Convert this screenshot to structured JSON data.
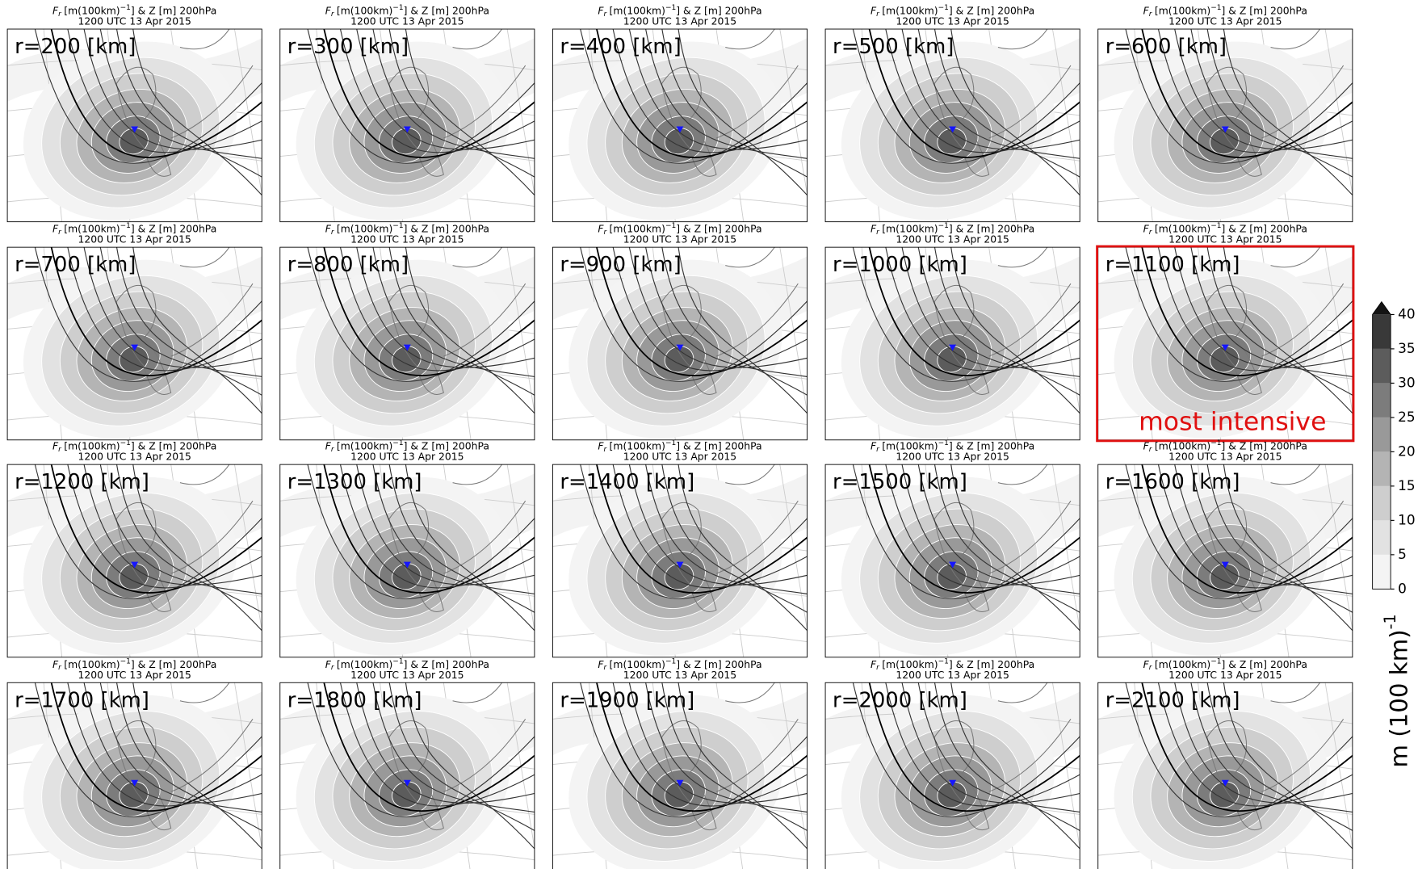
{
  "panels": [
    {
      "title": {
        "symbol": "F",
        "subscript": "r",
        "unit": "[m(100km)",
        "exponent": "−1",
        "rest": "] & Z [m] 200hPa"
      },
      "time": "1200 UTC 13 Apr 2015",
      "label": "r=200 [km]"
    },
    {
      "title": {
        "symbol": "F",
        "subscript": "r",
        "unit": "[m(100km)",
        "exponent": "−1",
        "rest": "] & Z [m] 200hPa"
      },
      "time": "1200 UTC 13 Apr 2015",
      "label": "r=300 [km]"
    },
    {
      "title": {
        "symbol": "F",
        "subscript": "r",
        "unit": "[m(100km)",
        "exponent": "−1",
        "rest": "] & Z [m] 200hPa"
      },
      "time": "1200 UTC 13 Apr 2015",
      "label": "r=400 [km]"
    },
    {
      "title": {
        "symbol": "F",
        "subscript": "r",
        "unit": "[m(100km)",
        "exponent": "−1",
        "rest": "] & Z [m] 200hPa"
      },
      "time": "1200 UTC 13 Apr 2015",
      "label": "r=500 [km]"
    },
    {
      "title": {
        "symbol": "F",
        "subscript": "r",
        "unit": "[m(100km)",
        "exponent": "−1",
        "rest": "] & Z [m] 200hPa"
      },
      "time": "1200 UTC 13 Apr 2015",
      "label": "r=600 [km]"
    },
    {
      "title": {
        "symbol": "F",
        "subscript": "r",
        "unit": "[m(100km)",
        "exponent": "−1",
        "rest": "] & Z [m] 200hPa"
      },
      "time": "1200 UTC 13 Apr 2015",
      "label": "r=700 [km]"
    },
    {
      "title": {
        "symbol": "F",
        "subscript": "r",
        "unit": "[m(100km)",
        "exponent": "−1",
        "rest": "] & Z [m] 200hPa"
      },
      "time": "1200 UTC 13 Apr 2015",
      "label": "r=800 [km]"
    },
    {
      "title": {
        "symbol": "F",
        "subscript": "r",
        "unit": "[m(100km)",
        "exponent": "−1",
        "rest": "] & Z [m] 200hPa"
      },
      "time": "1200 UTC 13 Apr 2015",
      "label": "r=900 [km]"
    },
    {
      "title": {
        "symbol": "F",
        "subscript": "r",
        "unit": "[m(100km)",
        "exponent": "−1",
        "rest": "] & Z [m] 200hPa"
      },
      "time": "1200 UTC 13 Apr 2015",
      "label": "r=1000 [km]"
    },
    {
      "title": {
        "symbol": "F",
        "subscript": "r",
        "unit": "[m(100km)",
        "exponent": "−1",
        "rest": "] & Z [m] 200hPa"
      },
      "time": "1200 UTC 13 Apr 2015",
      "label": "r=1100 [km]",
      "annotation": "most intensive"
    },
    {
      "title": {
        "symbol": "F",
        "subscript": "r",
        "unit": "[m(100km)",
        "exponent": "−1",
        "rest": "] & Z [m] 200hPa"
      },
      "time": "1200 UTC 13 Apr 2015",
      "label": "r=1200 [km]"
    },
    {
      "title": {
        "symbol": "F",
        "subscript": "r",
        "unit": "[m(100km)",
        "exponent": "−1",
        "rest": "] & Z [m] 200hPa"
      },
      "time": "1200 UTC 13 Apr 2015",
      "label": "r=1300 [km]"
    },
    {
      "title": {
        "symbol": "F",
        "subscript": "r",
        "unit": "[m(100km)",
        "exponent": "−1",
        "rest": "] & Z [m] 200hPa"
      },
      "time": "1200 UTC 13 Apr 2015",
      "label": "r=1400 [km]"
    },
    {
      "title": {
        "symbol": "F",
        "subscript": "r",
        "unit": "[m(100km)",
        "exponent": "−1",
        "rest": "] & Z [m] 200hPa"
      },
      "time": "1200 UTC 13 Apr 2015",
      "label": "r=1500 [km]"
    },
    {
      "title": {
        "symbol": "F",
        "subscript": "r",
        "unit": "[m(100km)",
        "exponent": "−1",
        "rest": "] & Z [m] 200hPa"
      },
      "time": "1200 UTC 13 Apr 2015",
      "label": "r=1600 [km]"
    },
    {
      "title": {
        "symbol": "F",
        "subscript": "r",
        "unit": "[m(100km)",
        "exponent": "−1",
        "rest": "] & Z [m] 200hPa"
      },
      "time": "1200 UTC 13 Apr 2015",
      "label": "r=1700 [km]"
    },
    {
      "title": {
        "symbol": "F",
        "subscript": "r",
        "unit": "[m(100km)",
        "exponent": "−1",
        "rest": "] & Z [m] 200hPa"
      },
      "time": "1200 UTC 13 Apr 2015",
      "label": "r=1800 [km]"
    },
    {
      "title": {
        "symbol": "F",
        "subscript": "r",
        "unit": "[m(100km)",
        "exponent": "−1",
        "rest": "] & Z [m] 200hPa"
      },
      "time": "1200 UTC 13 Apr 2015",
      "label": "r=1900 [km]"
    },
    {
      "title": {
        "symbol": "F",
        "subscript": "r",
        "unit": "[m(100km)",
        "exponent": "−1",
        "rest": "] & Z [m] 200hPa"
      },
      "time": "1200 UTC 13 Apr 2015",
      "label": "r=2000 [km]"
    },
    {
      "title": {
        "symbol": "F",
        "subscript": "r",
        "unit": "[m(100km)",
        "exponent": "−1",
        "rest": "] & Z [m] 200hPa"
      },
      "time": "1200 UTC 13 Apr 2015",
      "label": "r=2100 [km]"
    }
  ],
  "colorbar": {
    "ticks": [
      0,
      5,
      10,
      15,
      20,
      25,
      30,
      35,
      40
    ],
    "colors": [
      "#f4f4f4",
      "#e2e2e2",
      "#cecece",
      "#b4b4b4",
      "#999999",
      "#7c7c7c",
      "#5c5c5c",
      "#393939"
    ],
    "extend_color": "#141414",
    "label": "m (100 km)",
    "label_exponent": "-1"
  }
}
